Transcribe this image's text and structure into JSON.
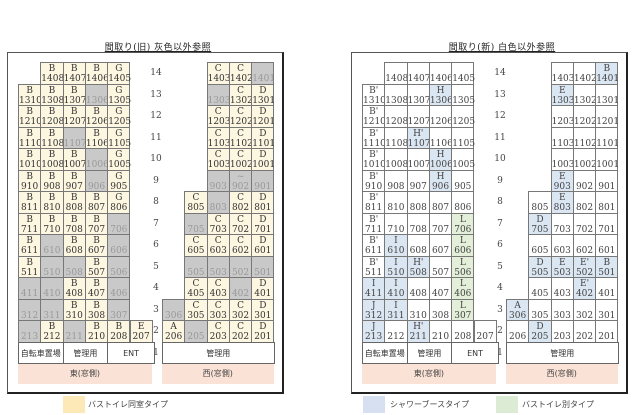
{
  "colors": {
    "yellow": "#fdf6e0",
    "gray": "#c9c9c9",
    "white": "#ffffff",
    "blue": "#dbe6f3",
    "green": "#e3efd9",
    "pink": "#fbe2d6"
  },
  "panels": [
    {
      "title": "間取り(旧)  灰色以外参照",
      "floors": [
        "14",
        "13",
        "12",
        "11",
        "10",
        "9",
        "8",
        "7",
        "6",
        "5",
        "4",
        "3",
        "2",
        "1"
      ],
      "east_block": [
        [
          [
            "B",
            "1408",
            "y"
          ],
          [
            "B",
            "1407",
            "y"
          ],
          [
            "B",
            "1406",
            "y"
          ],
          [
            "G",
            "1405",
            "y"
          ]
        ],
        [
          [
            "B",
            "1310",
            "y"
          ],
          [
            "B",
            "1308",
            "y"
          ],
          [
            "B",
            "1307",
            "y"
          ],
          [
            "",
            "1306",
            "g"
          ],
          [
            "G",
            "1305",
            "y"
          ]
        ],
        [
          [
            "B",
            "1210",
            "y"
          ],
          [
            "B",
            "1208",
            "y"
          ],
          [
            "B",
            "1207",
            "y"
          ],
          [
            "B",
            "1206",
            "y"
          ],
          [
            "G",
            "1205",
            "y"
          ]
        ],
        [
          [
            "B",
            "1110",
            "y"
          ],
          [
            "B",
            "1108",
            "y"
          ],
          [
            "",
            "1107",
            "g"
          ],
          [
            "B",
            "1106",
            "y"
          ],
          [
            "G",
            "1105",
            "y"
          ]
        ],
        [
          [
            "B",
            "1010",
            "y"
          ],
          [
            "B",
            "1008",
            "y"
          ],
          [
            "B",
            "1007",
            "y"
          ],
          [
            "",
            "1006",
            "g"
          ],
          [
            "G",
            "1005",
            "y"
          ]
        ],
        [
          [
            "B",
            "910",
            "y"
          ],
          [
            "B",
            "908",
            "y"
          ],
          [
            "B",
            "907",
            "y"
          ],
          [
            "",
            "906",
            "g"
          ],
          [
            "G",
            "905",
            "y"
          ]
        ],
        [
          [
            "B",
            "811",
            "y"
          ],
          [
            "B",
            "810",
            "y"
          ],
          [
            "B",
            "808",
            "y"
          ],
          [
            "B",
            "807",
            "y"
          ],
          [
            "G",
            "806",
            "y"
          ]
        ],
        [
          [
            "B",
            "711",
            "y"
          ],
          [
            "B",
            "710",
            "y"
          ],
          [
            "B",
            "708",
            "y"
          ],
          [
            "B",
            "707",
            "y"
          ],
          [
            "",
            "706",
            "g"
          ]
        ],
        [
          [
            "B",
            "611",
            "y"
          ],
          [
            "",
            "610",
            "g"
          ],
          [
            "B",
            "608",
            "y"
          ],
          [
            "B",
            "607",
            "y"
          ],
          [
            "",
            "606",
            "g"
          ]
        ],
        [
          [
            "B",
            "511",
            "y"
          ],
          [
            "",
            "510",
            "g"
          ],
          [
            "",
            "508",
            "g"
          ],
          [
            "B",
            "507",
            "y"
          ],
          [
            "",
            "506",
            "g"
          ]
        ],
        [
          [
            "",
            "411",
            "g"
          ],
          [
            "",
            "410",
            "g"
          ],
          [
            "B",
            "408",
            "y"
          ],
          [
            "B",
            "407",
            "y"
          ],
          [
            "",
            "406",
            "g"
          ]
        ],
        [
          [
            "",
            "312",
            "g"
          ],
          [
            "",
            "311",
            "g"
          ],
          [
            "B",
            "310",
            "y"
          ],
          [
            "B",
            "308",
            "y"
          ],
          [
            "",
            "307",
            "g"
          ]
        ],
        [
          [
            "",
            "213",
            "g"
          ],
          [
            "B",
            "212",
            "y"
          ],
          [
            "",
            "211",
            "g"
          ],
          [
            "B",
            "210",
            "y"
          ],
          [
            "B",
            "208",
            "y"
          ],
          [
            "E",
            "207",
            "y"
          ]
        ]
      ],
      "west_block": [
        [
          [
            "C",
            "1403",
            "y"
          ],
          [
            "C",
            "1402",
            "y"
          ],
          [
            "",
            "1401",
            "g"
          ]
        ],
        [
          [
            "",
            "1303",
            "g"
          ],
          [
            "C",
            "1302",
            "y"
          ],
          [
            "D",
            "1301",
            "y"
          ]
        ],
        [
          [
            "C",
            "1203",
            "y"
          ],
          [
            "C",
            "1202",
            "y"
          ],
          [
            "D",
            "1201",
            "y"
          ]
        ],
        [
          [
            "C",
            "1103",
            "y"
          ],
          [
            "C",
            "1102",
            "y"
          ],
          [
            "D",
            "1101",
            "y"
          ]
        ],
        [
          [
            "C",
            "1003",
            "y"
          ],
          [
            "C",
            "1002",
            "y"
          ],
          [
            "D",
            "1001",
            "y"
          ]
        ],
        [
          [
            "",
            "903",
            "g"
          ],
          [
            "~",
            "902",
            "g"
          ],
          [
            "",
            "901",
            "g"
          ]
        ],
        [
          [
            "C",
            "805",
            "y"
          ],
          [
            "",
            "803",
            "g"
          ],
          [
            "C",
            "802",
            "y"
          ],
          [
            "D",
            "801",
            "y"
          ]
        ],
        [
          [
            "",
            "705",
            "g"
          ],
          [
            "C",
            "703",
            "y"
          ],
          [
            "C",
            "702",
            "y"
          ],
          [
            "D",
            "701",
            "y"
          ]
        ],
        [
          [
            "C",
            "605",
            "y"
          ],
          [
            "C",
            "603",
            "y"
          ],
          [
            "C",
            "602",
            "y"
          ],
          [
            "D",
            "601",
            "y"
          ]
        ],
        [
          [
            "",
            "505",
            "g"
          ],
          [
            "",
            "503",
            "g"
          ],
          [
            "",
            "502",
            "g"
          ],
          [
            "",
            "501",
            "g"
          ]
        ],
        [
          [
            "C",
            "405",
            "y"
          ],
          [
            "C",
            "403",
            "y"
          ],
          [
            "",
            "402",
            "g"
          ],
          [
            "D",
            "401",
            "y"
          ]
        ],
        [
          [
            "",
            "306",
            "g"
          ],
          [
            "C",
            "305",
            "y"
          ],
          [
            "C",
            "303",
            "y"
          ],
          [
            "C",
            "302",
            "y"
          ],
          [
            "D",
            "301",
            "y"
          ]
        ],
        [
          [
            "A",
            "206",
            "y"
          ],
          [
            "",
            "205",
            "g"
          ],
          [
            "C",
            "203",
            "y"
          ],
          [
            "C",
            "202",
            "y"
          ],
          [
            "D",
            "201",
            "y"
          ]
        ]
      ],
      "ground": {
        "bicycle": "自転車置場",
        "management": "管理用",
        "ent": "ENT",
        "west_management": "管理用"
      },
      "bands": {
        "east": "東(窓側)",
        "west": "西(窓側)"
      },
      "legend": [
        {
          "label": "バストイレ同室タイプ",
          "color": "#fde9b8"
        }
      ]
    },
    {
      "title": "間取り(新)  白色以外参照",
      "floors": [
        "14",
        "13",
        "12",
        "11",
        "10",
        "9",
        "8",
        "7",
        "6",
        "5",
        "4",
        "3",
        "2",
        "1"
      ],
      "east_block": [
        [
          [
            "",
            "1408",
            "w"
          ],
          [
            "",
            "1407",
            "w"
          ],
          [
            "",
            "1406",
            "w"
          ],
          [
            "",
            "1405",
            "w"
          ]
        ],
        [
          [
            "B'",
            "1310",
            "w"
          ],
          [
            "",
            "1308",
            "w"
          ],
          [
            "",
            "1307",
            "w"
          ],
          [
            "H",
            "1306",
            "b"
          ],
          [
            "",
            "1305",
            "w"
          ]
        ],
        [
          [
            "B'",
            "1210",
            "w"
          ],
          [
            "",
            "1208",
            "w"
          ],
          [
            "",
            "1207",
            "w"
          ],
          [
            "",
            "1206",
            "w"
          ],
          [
            "",
            "1205",
            "w"
          ]
        ],
        [
          [
            "B'",
            "1110",
            "w"
          ],
          [
            "",
            "1108",
            "w"
          ],
          [
            "H'",
            "1107",
            "b"
          ],
          [
            "",
            "1106",
            "w"
          ],
          [
            "",
            "1105",
            "w"
          ]
        ],
        [
          [
            "B'",
            "1010",
            "w"
          ],
          [
            "",
            "1008",
            "w"
          ],
          [
            "",
            "1007",
            "w"
          ],
          [
            "H",
            "1006",
            "b"
          ],
          [
            "",
            "1005",
            "w"
          ]
        ],
        [
          [
            "B'",
            "910",
            "w"
          ],
          [
            "",
            "908",
            "w"
          ],
          [
            "",
            "907",
            "w"
          ],
          [
            "H",
            "906",
            "b"
          ],
          [
            "",
            "905",
            "w"
          ]
        ],
        [
          [
            "B'",
            "811",
            "w"
          ],
          [
            "",
            "810",
            "w"
          ],
          [
            "",
            "808",
            "w"
          ],
          [
            "",
            "807",
            "w"
          ],
          [
            "",
            "806",
            "w"
          ]
        ],
        [
          [
            "B'",
            "711",
            "w"
          ],
          [
            "",
            "710",
            "w"
          ],
          [
            "",
            "708",
            "w"
          ],
          [
            "",
            "707",
            "w"
          ],
          [
            "L",
            "706",
            "gr"
          ]
        ],
        [
          [
            "B'",
            "611",
            "w"
          ],
          [
            "I",
            "610",
            "b"
          ],
          [
            "",
            "608",
            "w"
          ],
          [
            "",
            "607",
            "w"
          ],
          [
            "L",
            "606",
            "gr"
          ]
        ],
        [
          [
            "B'",
            "511",
            "w"
          ],
          [
            "I",
            "510",
            "b"
          ],
          [
            "H'",
            "508",
            "b"
          ],
          [
            "",
            "507",
            "w"
          ],
          [
            "L",
            "506",
            "gr"
          ]
        ],
        [
          [
            "I",
            "411",
            "b"
          ],
          [
            "I",
            "410",
            "b"
          ],
          [
            "",
            "408",
            "w"
          ],
          [
            "",
            "407",
            "w"
          ],
          [
            "L",
            "406",
            "gr"
          ]
        ],
        [
          [
            "J",
            "312",
            "b"
          ],
          [
            "I",
            "311",
            "b"
          ],
          [
            "",
            "310",
            "w"
          ],
          [
            "",
            "308",
            "w"
          ],
          [
            "L",
            "307",
            "gr"
          ]
        ],
        [
          [
            "J",
            "213",
            "b"
          ],
          [
            "",
            "212",
            "w"
          ],
          [
            "H'",
            "211",
            "b"
          ],
          [
            "",
            "210",
            "w"
          ],
          [
            "",
            "208",
            "w"
          ],
          [
            "",
            "207",
            "w"
          ]
        ]
      ],
      "west_block": [
        [
          [
            "",
            "1403",
            "w"
          ],
          [
            "",
            "1402",
            "w"
          ],
          [
            "B",
            "1401",
            "b"
          ]
        ],
        [
          [
            "E",
            "1303",
            "b"
          ],
          [
            "",
            "1302",
            "w"
          ],
          [
            "",
            "1301",
            "w"
          ]
        ],
        [
          [
            "",
            "1203",
            "w"
          ],
          [
            "",
            "1202",
            "w"
          ],
          [
            "",
            "1201",
            "w"
          ]
        ],
        [
          [
            "",
            "1103",
            "w"
          ],
          [
            "",
            "1102",
            "w"
          ],
          [
            "",
            "1101",
            "w"
          ]
        ],
        [
          [
            "",
            "1003",
            "w"
          ],
          [
            "",
            "1002",
            "w"
          ],
          [
            "",
            "1001",
            "w"
          ]
        ],
        [
          [
            "E",
            "903",
            "b"
          ],
          [
            "",
            "902",
            "w"
          ],
          [
            "",
            "901",
            "w"
          ]
        ],
        [
          [
            "",
            "805",
            "w"
          ],
          [
            "E",
            "803",
            "b"
          ],
          [
            "",
            "802",
            "w"
          ],
          [
            "",
            "801",
            "w"
          ]
        ],
        [
          [
            "D",
            "705",
            "b"
          ],
          [
            "",
            "703",
            "w"
          ],
          [
            "",
            "702",
            "w"
          ],
          [
            "",
            "701",
            "w"
          ]
        ],
        [
          [
            "",
            "605",
            "w"
          ],
          [
            "",
            "603",
            "w"
          ],
          [
            "",
            "602",
            "w"
          ],
          [
            "",
            "601",
            "w"
          ]
        ],
        [
          [
            "D",
            "505",
            "b"
          ],
          [
            "E",
            "503",
            "b"
          ],
          [
            "E'",
            "502",
            "b"
          ],
          [
            "B",
            "501",
            "b"
          ]
        ],
        [
          [
            "",
            "405",
            "w"
          ],
          [
            "",
            "403",
            "w"
          ],
          [
            "E'",
            "402",
            "b"
          ],
          [
            "",
            "401",
            "w"
          ]
        ],
        [
          [
            "A",
            "306",
            "b"
          ],
          [
            "",
            "305",
            "w"
          ],
          [
            "",
            "303",
            "w"
          ],
          [
            "",
            "302",
            "w"
          ],
          [
            "",
            "301",
            "w"
          ]
        ],
        [
          [
            "",
            "206",
            "w"
          ],
          [
            "D",
            "205",
            "b"
          ],
          [
            "",
            "203",
            "w"
          ],
          [
            "",
            "202",
            "w"
          ],
          [
            "",
            "201",
            "w"
          ]
        ]
      ],
      "ground": {
        "bicycle": "自転車置場",
        "management": "管理用",
        "ent": "ENT",
        "west_management": "管理用"
      },
      "bands": {
        "east": "東(窓側)",
        "west": "西(窓側)"
      },
      "legend": [
        {
          "label": "シャワーブースタイプ",
          "color": "#d6e0f0"
        },
        {
          "label": "バストイレ別タイプ",
          "color": "#dcebd3"
        }
      ]
    }
  ]
}
